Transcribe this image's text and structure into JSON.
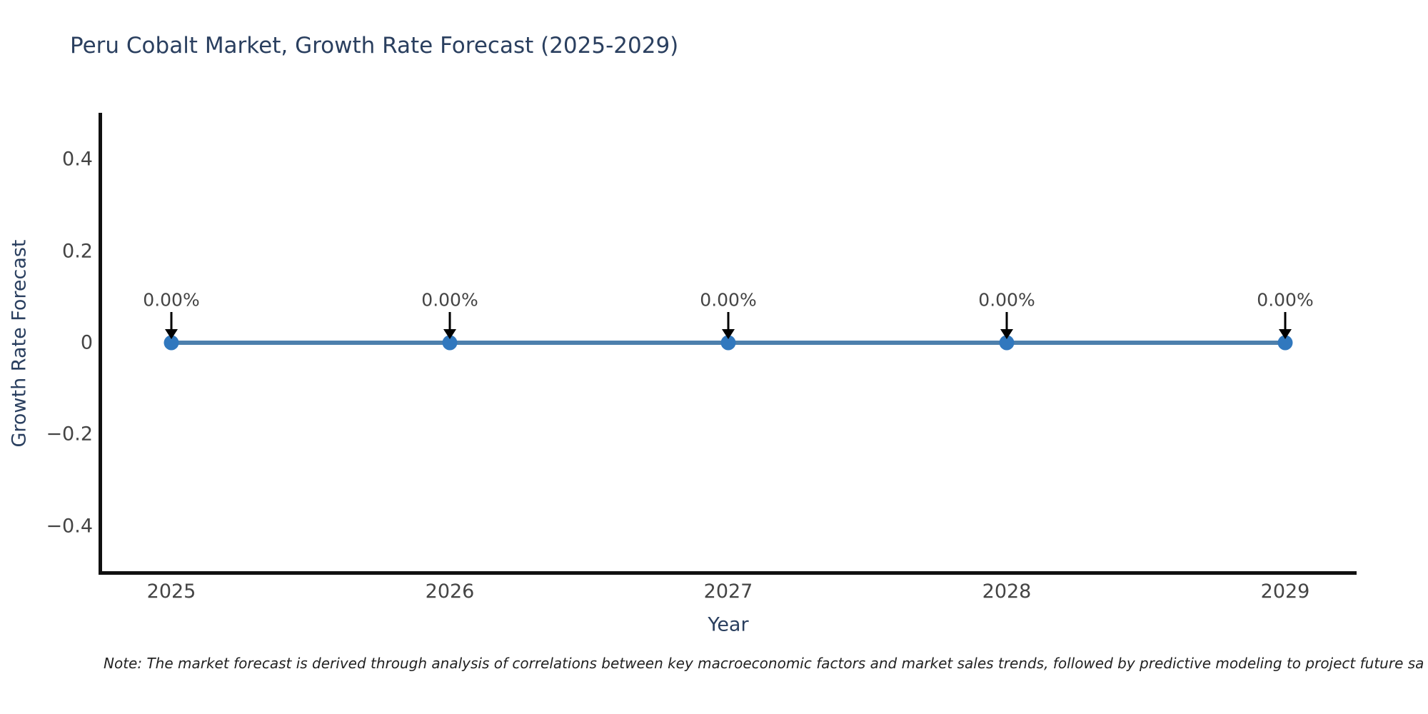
{
  "title": "Peru Cobalt Market, Growth Rate Forecast (2025-2029)",
  "note": "Note: The market forecast is derived through analysis of correlations between key macroeconomic factors and market sales trends, followed by predictive modeling to project future sa",
  "chart_data": {
    "type": "line",
    "title": "Peru Cobalt Market, Growth Rate Forecast (2025-2029)",
    "xlabel": "Year",
    "ylabel": "Growth Rate Forecast",
    "x": [
      2025,
      2026,
      2027,
      2028,
      2029
    ],
    "y": [
      0,
      0,
      0,
      0,
      0
    ],
    "point_labels": [
      "0.00%",
      "0.00%",
      "0.00%",
      "0.00%",
      "0.00%"
    ],
    "xtick_labels": [
      "2025",
      "2026",
      "2027",
      "2028",
      "2029"
    ],
    "yticks": [
      0.4,
      0.2,
      0,
      -0.2,
      -0.4
    ],
    "ytick_labels": [
      "0.4",
      "0.2",
      "0",
      "−0.2",
      "−0.4"
    ],
    "ylim": [
      -0.5,
      0.5
    ],
    "grid": false,
    "legend": false,
    "annotation_arrows": true,
    "colors": {
      "line": "#4d80ad",
      "marker": "#3178be",
      "axis": "#111111",
      "arrow": "#000000",
      "title_text": "#2a3f5f",
      "tick_text": "#444444"
    }
  }
}
